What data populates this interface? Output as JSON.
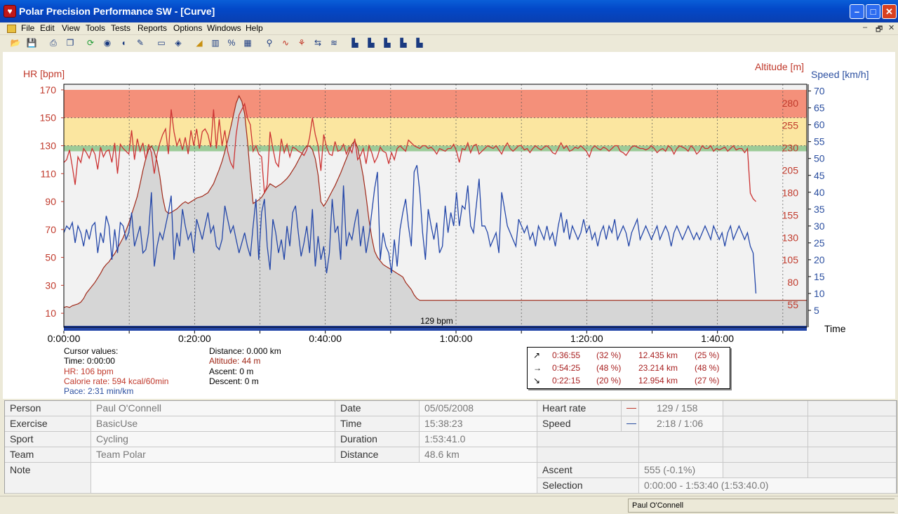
{
  "window": {
    "title": "Polar Precision Performance SW - [Curve]",
    "app_icon": "polar-heart-icon",
    "min": "0",
    "max": "1",
    "close": "r"
  },
  "menu": [
    "File",
    "Edit",
    "View",
    "Tools",
    "Tests",
    "Reports",
    "Options",
    "Windows",
    "Help"
  ],
  "mdi_controls": [
    "–",
    "🗗",
    "✕"
  ],
  "toolbar_icons": [
    "open-icon",
    "save-icon",
    "print-icon",
    "copy-icon",
    "refresh-icon",
    "globe-icon",
    "sound-icon",
    "tools-icon",
    "table-icon",
    "book-icon",
    "area-chart-icon",
    "bar-chart-icon",
    "percent-icon",
    "grid-icon",
    "zoom-icon",
    "hr-curve-icon",
    "analysis-icon",
    "compare-icon",
    "trend-icon",
    "bar-1-icon",
    "bar-2-icon",
    "bar-3-icon",
    "bar-4-icon",
    "bar-5-icon"
  ],
  "chart_data": {
    "type": "line",
    "axes": {
      "hr": {
        "label": "HR [bpm]",
        "ticks": [
          170,
          150,
          130,
          110,
          90,
          70,
          50,
          30,
          10
        ],
        "color": "#c0392b"
      },
      "altitude": {
        "label": "Altitude [m]",
        "ticks": [
          280,
          255,
          230,
          205,
          180,
          155,
          130,
          105,
          80,
          55
        ],
        "color": "#c0392b"
      },
      "speed": {
        "label": "Speed [km/h]",
        "ticks": [
          70,
          65,
          60,
          55,
          50,
          45,
          40,
          35,
          30,
          25,
          20,
          15,
          10,
          5
        ],
        "color": "#2b4fa0"
      },
      "time": {
        "label": "Time",
        "ticks": [
          "0:00:00",
          "0:20:00",
          "0:40:00",
          "1:00:00",
          "1:20:00",
          "1:40:00"
        ]
      }
    },
    "zones": [
      {
        "from": 150,
        "to": 170,
        "color": "#f4907a"
      },
      {
        "from": 130,
        "to": 150,
        "color": "#fbe6a0"
      },
      {
        "from": 126,
        "to": 130,
        "color": "#9ccb98"
      }
    ],
    "avg_label": "129 bpm",
    "series": [
      {
        "name": "HR",
        "color": "#cc3333",
        "values": [
          118,
          120,
          127,
          115,
          102,
          122,
          118,
          128,
          125,
          121,
          128,
          124,
          113,
          129,
          122,
          126,
          127,
          118,
          132,
          110,
          131,
          128,
          126,
          124,
          141,
          120,
          135,
          126,
          132,
          120,
          131,
          125,
          110,
          124,
          132,
          138,
          142,
          124,
          156,
          140,
          130,
          135,
          127,
          136,
          124,
          141,
          130,
          142,
          128,
          140,
          142,
          138,
          129,
          156,
          128,
          149,
          130,
          141,
          126,
          118,
          114,
          138,
          152,
          156,
          160,
          150,
          145,
          126,
          130,
          124,
          122,
          96,
          102,
          140,
          128,
          118,
          115,
          135,
          125,
          131,
          122,
          129,
          128,
          126,
          125,
          123,
          127,
          136,
          150,
          138,
          130,
          112,
          138,
          129,
          124,
          123,
          133,
          126,
          127,
          131,
          124,
          129,
          125,
          135,
          120,
          123,
          128,
          117,
          130,
          125,
          118,
          122,
          129,
          126,
          125,
          117,
          125,
          120,
          128,
          130,
          128,
          126,
          134,
          132,
          130,
          129,
          128,
          130,
          130,
          128,
          129,
          127,
          124,
          128,
          127,
          126,
          128,
          128,
          131,
          126,
          118,
          128,
          127,
          132,
          125,
          130,
          131,
          124,
          126,
          128,
          130,
          129,
          128,
          130,
          127,
          124,
          129,
          132,
          128,
          126,
          128,
          130,
          130,
          127,
          128,
          125,
          128,
          130,
          128,
          127,
          129,
          130,
          128,
          125,
          124,
          128,
          132,
          128,
          130,
          126,
          127,
          129,
          128,
          130,
          128,
          126,
          122,
          128,
          130,
          128,
          127,
          129,
          128,
          126,
          128,
          130,
          130,
          126,
          125,
          123,
          126,
          129,
          130,
          129,
          128,
          128,
          127,
          128,
          130,
          128,
          125,
          127,
          128,
          126,
          130,
          128,
          124,
          128,
          130,
          129,
          128,
          126,
          130,
          128,
          124,
          126,
          130,
          128,
          128,
          130,
          126,
          128,
          127,
          128,
          129,
          126,
          128,
          130,
          127,
          128,
          128,
          125,
          128,
          96,
          92,
          90
        ]
      },
      {
        "name": "Altitude",
        "color": "#a02818",
        "values": [
          52,
          53,
          52,
          54,
          55,
          56,
          58,
          62,
          68,
          72,
          76,
          80,
          85,
          90,
          96,
          100,
          103,
          108,
          112,
          118,
          124,
          130,
          138,
          146,
          156,
          166,
          176,
          190,
          205,
          218,
          228,
          232,
          226,
          215,
          198,
          175,
          160,
          157,
          158,
          160,
          162,
          165,
          168,
          170,
          168,
          170,
          172,
          174,
          175,
          176,
          178,
          180,
          185,
          190,
          198,
          206,
          215,
          226,
          238,
          252,
          266,
          280,
          288,
          282,
          268,
          238,
          200,
          168,
          170,
          172,
          175,
          180,
          185,
          190,
          188,
          186,
          188,
          190,
          193,
          196,
          200,
          205,
          210,
          216,
          222,
          228,
          232,
          232,
          228,
          218,
          200,
          170,
          165,
          170,
          176,
          182,
          188,
          195,
          202,
          210,
          218,
          226,
          234,
          238,
          230,
          215,
          198,
          176,
          150,
          130,
          115,
          108,
          104,
          100,
          98,
          96,
          94,
          92,
          90,
          88,
          86,
          80,
          76,
          72,
          66,
          62,
          60,
          60,
          60,
          60,
          60,
          60,
          60,
          60,
          60,
          60,
          60,
          60,
          60,
          60,
          60,
          60,
          60,
          60,
          60,
          60,
          60,
          60,
          60,
          60,
          60,
          60,
          60,
          60,
          60,
          60,
          60,
          60,
          60,
          60,
          60,
          60,
          60,
          60,
          60,
          60,
          60,
          60,
          60,
          60,
          60,
          60,
          60,
          60,
          60,
          60,
          60,
          60,
          60,
          60,
          60,
          60,
          60,
          60,
          60,
          60,
          60,
          60,
          60,
          60,
          60,
          60,
          60,
          60,
          60,
          60,
          60,
          60,
          60,
          60,
          60,
          60,
          60,
          60,
          60,
          60,
          60,
          60,
          60,
          60,
          60,
          60,
          60,
          60,
          60,
          60,
          60,
          60,
          60,
          60,
          60,
          60,
          60,
          60,
          60,
          60,
          60,
          60,
          60,
          60,
          60,
          60,
          60,
          60,
          60,
          60,
          60,
          60,
          60,
          60,
          60,
          60,
          60,
          60,
          60,
          60,
          60,
          60,
          60,
          60,
          60,
          60,
          60,
          60,
          60,
          60,
          60,
          60,
          60,
          60,
          60,
          60,
          60,
          60
        ]
      },
      {
        "name": "Speed",
        "color": "#2346a8",
        "values": [
          28,
          30,
          29,
          31,
          25,
          30,
          28,
          24,
          29,
          26,
          30,
          31,
          22,
          28,
          25,
          33,
          30,
          20,
          29,
          22,
          31,
          30,
          26,
          28,
          34,
          24,
          27,
          30,
          22,
          23,
          28,
          40,
          18,
          24,
          28,
          26,
          30,
          34,
          39,
          20,
          28,
          24,
          35,
          30,
          26,
          28,
          22,
          32,
          29,
          26,
          30,
          34,
          28,
          30,
          24,
          23,
          26,
          36,
          32,
          28,
          30,
          26,
          22,
          25,
          28,
          24,
          21,
          30,
          38,
          20,
          34,
          38,
          24,
          17,
          32,
          28,
          22,
          26,
          20,
          30,
          24,
          34,
          36,
          28,
          21,
          25,
          30,
          22,
          35,
          18,
          27,
          20,
          24,
          16,
          22,
          38,
          28,
          30,
          20,
          42,
          24,
          28,
          26,
          31,
          35,
          24,
          30,
          22,
          27,
          34,
          41,
          46,
          20,
          28,
          24,
          22,
          16,
          26,
          18,
          29,
          34,
          38,
          30,
          24,
          46,
          48,
          40,
          28,
          20,
          35,
          30,
          26,
          31,
          22,
          24,
          36,
          28,
          34,
          30,
          40,
          30,
          36,
          35,
          42,
          30,
          28,
          36,
          44,
          30,
          30,
          28,
          24,
          26,
          28,
          22,
          40,
          35,
          30,
          28,
          26,
          24,
          32,
          30,
          28,
          30,
          26,
          28,
          24,
          30,
          28,
          26,
          30,
          26,
          28,
          24,
          30,
          34,
          28,
          32,
          26,
          30,
          28,
          26,
          28,
          32,
          28,
          30,
          26,
          28,
          24,
          28,
          30,
          26,
          30,
          28,
          32,
          26,
          28,
          30,
          28,
          24,
          28,
          30,
          32,
          26,
          28,
          30,
          28,
          26,
          28,
          30,
          26,
          28,
          30,
          28,
          24,
          28,
          30,
          28,
          26,
          28,
          30,
          28,
          26,
          28,
          26,
          28,
          30,
          28,
          26,
          30,
          28,
          26,
          28,
          24,
          28,
          30,
          26,
          28,
          30,
          28,
          26,
          28,
          24,
          22,
          10
        ]
      }
    ]
  },
  "cursor": {
    "title": "Cursor values:",
    "time": "Time: 0:00:00",
    "hr": "HR: 106 bpm",
    "calorie": "Calorie rate: 594 kcal/60min",
    "pace": "Pace: 2:31 min/km",
    "distance": "Distance: 0.000 km",
    "altitude": "Altitude: 44 m",
    "ascent": "Ascent: 0 m",
    "descent": "Descent: 0 m"
  },
  "slope_summary": [
    {
      "arrow": "↗",
      "time": "0:36:55",
      "pct": "(32 %)",
      "dist": "12.435 km",
      "dpct": "(25 %)"
    },
    {
      "arrow": "→",
      "time": "0:54:25",
      "pct": "(48 %)",
      "dist": "23.214 km",
      "dpct": "(48 %)"
    },
    {
      "arrow": "↘",
      "time": "0:22:15",
      "pct": "(20 %)",
      "dist": "12.954 km",
      "dpct": "(27 %)"
    }
  ],
  "info": {
    "person_label": "Person",
    "person": "Paul O'Connell",
    "exercise_label": "Exercise",
    "exercise": "BasicUse",
    "sport_label": "Sport",
    "sport": "Cycling",
    "team_label": "Team",
    "team": "Team Polar",
    "note_label": "Note",
    "date_label": "Date",
    "date": "05/05/2008",
    "time_label": "Time",
    "time": "15:38:23",
    "duration_label": "Duration",
    "duration": "1:53:41.0",
    "distance_label": "Distance",
    "distance": "48.6 km",
    "hr_label": "Heart rate",
    "hr": "129 / 158",
    "speed_label": "Speed",
    "speed": "2:18 / 1:06",
    "ascent_label": "Ascent",
    "ascent": "555 (-0.1%)",
    "selection_label": "Selection",
    "selection": "0:00:00 - 1:53:40 (1:53:40.0)"
  },
  "status": {
    "user": "Paul O'Connell"
  }
}
